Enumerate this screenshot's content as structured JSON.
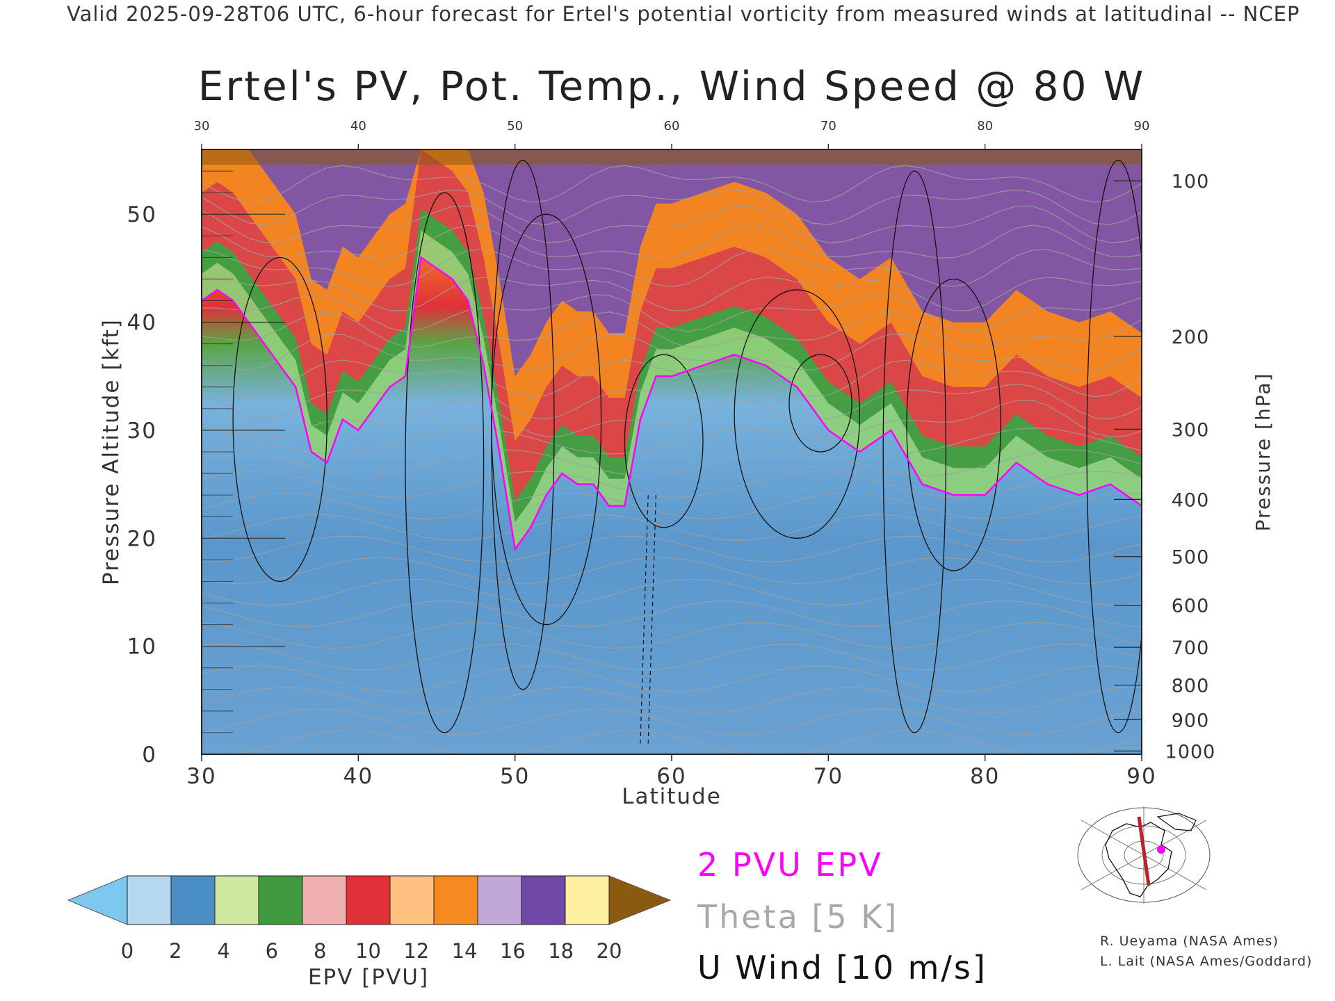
{
  "header": {
    "valid_line": "Valid 2025-09-28T06 UTC, 6-hour forecast for Ertel's potential vorticity from measured winds at latitudinal -- NCEP"
  },
  "chart_data": {
    "type": "heatmap",
    "title": "Ertel's PV, Pot. Temp., Wind Speed @ 80 W",
    "xlabel": "Latitude",
    "ylabel": "Pressure Altitude [kft]",
    "ylabel_right": "Pressure [hPa]",
    "xlim": [
      30,
      90
    ],
    "ylim": [
      0,
      56
    ],
    "x_ticks": [
      "30",
      "40",
      "50",
      "60",
      "70",
      "80",
      "90"
    ],
    "x_ticks_top": [
      "30",
      "40",
      "50",
      "60",
      "70",
      "80",
      "90"
    ],
    "y_ticks": [
      "0",
      "10",
      "20",
      "30",
      "40",
      "50"
    ],
    "pressure_ticks": [
      {
        "label": "100",
        "kft": 53.1
      },
      {
        "label": "200",
        "kft": 38.7
      },
      {
        "label": "300",
        "kft": 30.1
      },
      {
        "label": "400",
        "kft": 23.6
      },
      {
        "label": "500",
        "kft": 18.3
      },
      {
        "label": "600",
        "kft": 13.8
      },
      {
        "label": "700",
        "kft": 9.9
      },
      {
        "label": "800",
        "kft": 6.4
      },
      {
        "label": "900",
        "kft": 3.2
      },
      {
        "label": "1000",
        "kft": 0.3
      }
    ],
    "series": [
      {
        "name": "2 PVU EPV",
        "color": "#ff00ff",
        "x": [
          30,
          31,
          32,
          33,
          34,
          35,
          36,
          37,
          38,
          39,
          40,
          41,
          42,
          43,
          44,
          45,
          46,
          47,
          48,
          49,
          50,
          51,
          52,
          53,
          54,
          55,
          56,
          57,
          58,
          59,
          60,
          62,
          64,
          66,
          68,
          70,
          72,
          74,
          76,
          78,
          80,
          82,
          84,
          86,
          88,
          90
        ],
        "y": [
          42,
          43,
          42,
          40,
          38,
          36,
          34,
          28,
          27,
          31,
          30,
          32,
          34,
          35,
          46,
          45,
          44,
          42,
          36,
          28,
          19,
          21,
          24,
          26,
          25,
          25,
          23,
          23,
          31,
          35,
          35,
          36,
          37,
          36,
          34,
          30,
          28,
          30,
          25,
          24,
          24,
          27,
          25,
          24,
          25,
          23
        ]
      }
    ],
    "contours": {
      "theta_label": "Theta [5 K]",
      "wind_label": "U Wind [10 m/s]",
      "theta_color": "#a0a0a0",
      "wind_color": "#111111"
    },
    "colorbar": {
      "label": "EPV [PVU]",
      "ticks": [
        "0",
        "2",
        "4",
        "6",
        "8",
        "10",
        "12",
        "14",
        "16",
        "18",
        "20"
      ],
      "under_color": "#7ec8f0",
      "over_color": "#8b5a10",
      "colors": [
        "#b6d8ef",
        "#4a8ec6",
        "#cfe8a0",
        "#3f9a3f",
        "#f0b0b0",
        "#e03038",
        "#ffc080",
        "#f58a20",
        "#c0a8d8",
        "#7048a8",
        "#fff0a0"
      ]
    },
    "legend": {
      "epv": "2 PVU EPV",
      "theta": "Theta [5 K]",
      "wind": "U Wind [10 m/s]"
    }
  },
  "credits": {
    "line1": "R. Ueyama (NASA Ames)",
    "line2": "L. Lait (NASA Ames/Goddard)"
  }
}
